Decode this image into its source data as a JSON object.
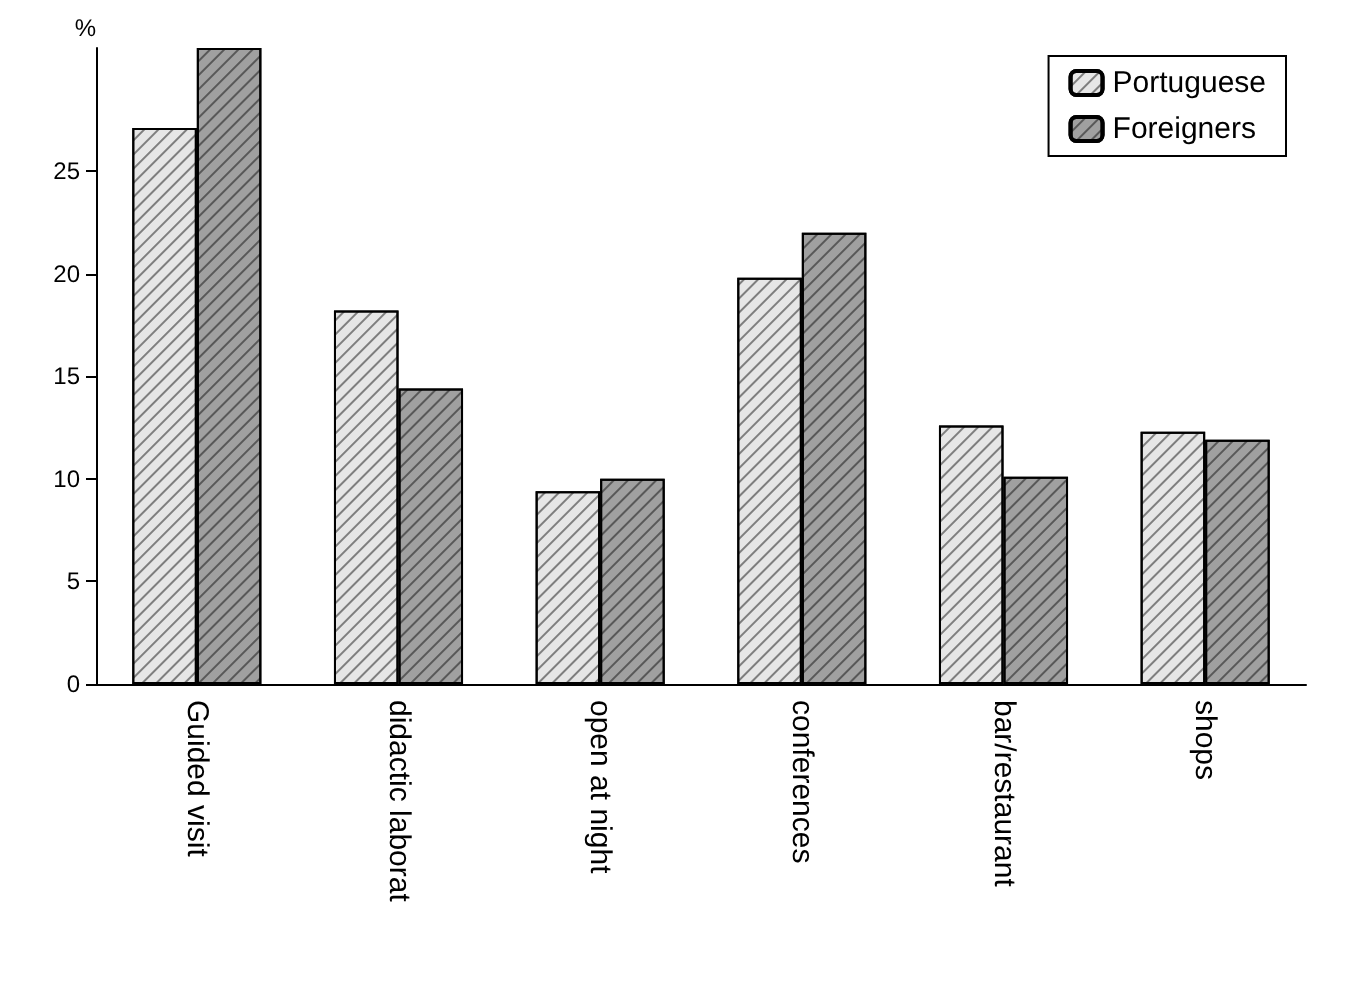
{
  "chart_data": {
    "type": "bar",
    "ylabel": "%",
    "categories": [
      "Guided visit",
      "didactic laborat",
      "open at night",
      "conferences",
      "bar/restaurant",
      "shops"
    ],
    "series": [
      {
        "name": "Portuguese",
        "color": "#e6e6e6",
        "values": [
          27.1,
          18.2,
          9.4,
          19.8,
          12.6,
          12.3
        ]
      },
      {
        "name": "Foreigners",
        "color": "#a0a0a0",
        "values": [
          31.0,
          14.4,
          10.0,
          22.0,
          10.1,
          11.9
        ]
      }
    ],
    "ylim": [
      0,
      31
    ],
    "yticks": [
      0,
      5,
      10,
      15,
      20,
      25
    ],
    "grid": false,
    "legend": "top right"
  }
}
